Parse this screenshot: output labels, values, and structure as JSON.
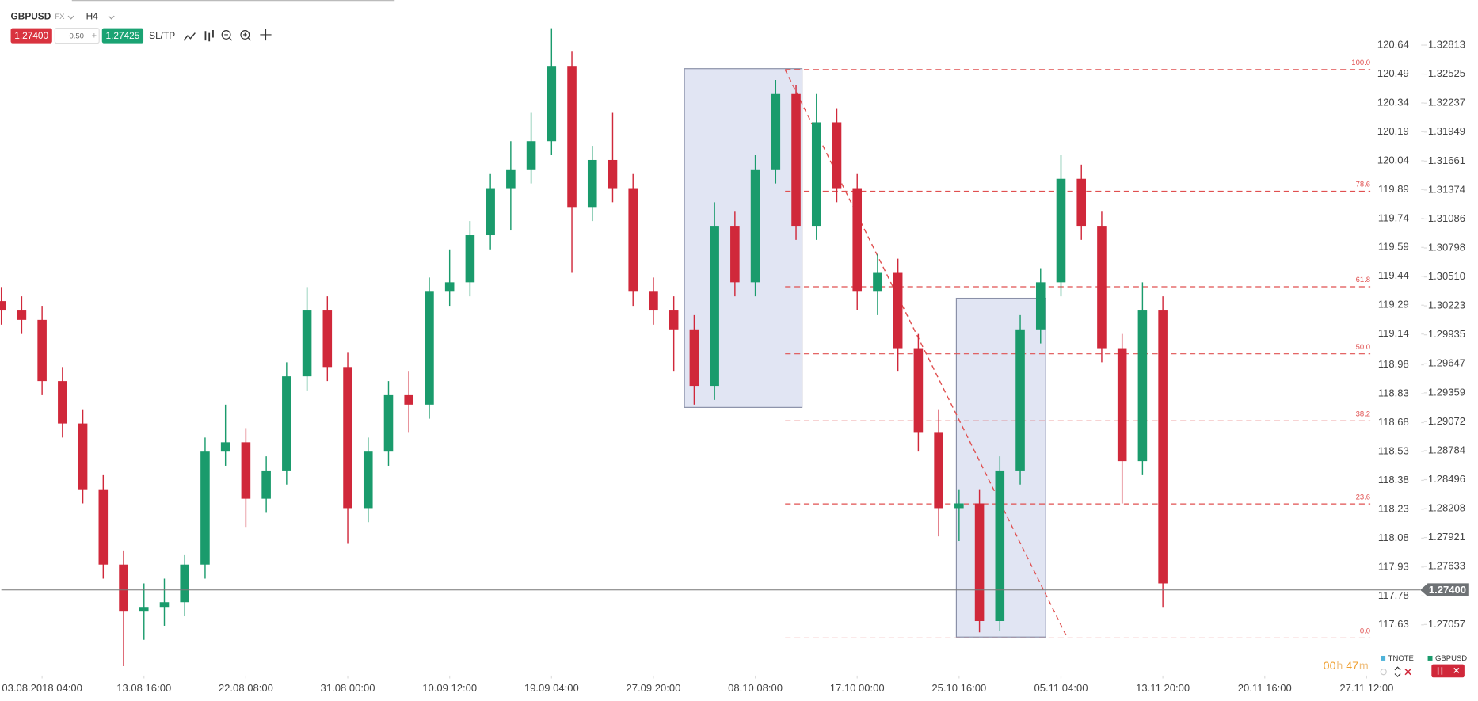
{
  "header": {
    "symbol": "GBPUSD",
    "market": "FX",
    "timeframe": "H4",
    "sell": "1.27400",
    "spread": "0.50",
    "buy": "1.27425",
    "sltp": "SL/TP"
  },
  "chart_data": {
    "type": "candlestick",
    "up_color": "#1a9b6c",
    "down_color": "#d0283a",
    "open": [
      1.3027,
      1.30176,
      1.30083,
      1.29475,
      1.29054,
      1.284,
      1.27652,
      1.27184,
      1.27231,
      1.27278,
      1.27652,
      1.28774,
      1.28867,
      1.28306,
      1.28587,
      1.29522,
      1.30176,
      1.29615,
      1.28213,
      1.28774,
      1.29335,
      1.29241,
      1.30363,
      1.30457,
      1.30924,
      1.31392,
      1.31579,
      1.31859,
      1.32607,
      1.31205,
      1.31672,
      1.31392,
      1.30363,
      1.30176,
      1.29989,
      1.29428,
      1.31018,
      1.30457,
      1.31579,
      1.32327,
      1.31018,
      1.32046,
      1.31392,
      1.30363,
      1.3055,
      1.29802,
      1.28961,
      1.28213,
      1.2826,
      1.27091,
      1.28587,
      1.29989,
      1.30457,
      1.31485,
      1.31018,
      1.29802,
      1.2868,
      1.30176
    ],
    "high": [
      1.3041,
      1.30317,
      1.30223,
      1.29615,
      1.29195,
      1.2854,
      1.27792,
      1.27465,
      1.27512,
      1.27745,
      1.28914,
      1.29241,
      1.29008,
      1.28727,
      1.29662,
      1.3041,
      1.30317,
      1.29756,
      1.28914,
      1.29475,
      1.29569,
      1.30504,
      1.30784,
      1.31065,
      1.31532,
      1.31859,
      1.3214,
      1.32981,
      1.32748,
      1.31813,
      1.3214,
      1.31532,
      1.30504,
      1.30317,
      1.3013,
      1.31252,
      1.31158,
      1.31719,
      1.32467,
      1.3242,
      1.32327,
      1.32187,
      1.31532,
      1.30737,
      1.30691,
      1.29943,
      1.29195,
      1.284,
      1.284,
      1.28727,
      1.3013,
      1.30597,
      1.31719,
      1.31626,
      1.31158,
      1.29943,
      1.30457,
      1.30317
    ],
    "low": [
      1.30036,
      1.29943,
      1.29335,
      1.28914,
      1.2826,
      1.27512,
      1.26642,
      1.26904,
      1.27044,
      1.27138,
      1.27512,
      1.28634,
      1.28026,
      1.28166,
      1.28447,
      1.29382,
      1.29475,
      1.27858,
      1.28073,
      1.28634,
      1.28961,
      1.29101,
      1.30223,
      1.30317,
      1.30784,
      1.30971,
      1.31439,
      1.31719,
      1.3055,
      1.31065,
      1.31252,
      1.30223,
      1.30036,
      1.29569,
      1.29241,
      1.29288,
      1.30317,
      1.30317,
      1.31439,
      1.30878,
      1.30878,
      1.31252,
      1.30176,
      1.3013,
      1.29569,
      1.28774,
      1.27932,
      1.27886,
      1.26979,
      1.26997,
      1.28447,
      1.29849,
      1.30317,
      1.30878,
      1.29662,
      1.2826,
      1.2854,
      1.27231
    ],
    "close": [
      1.30176,
      1.30083,
      1.29475,
      1.29054,
      1.284,
      1.27652,
      1.27184,
      1.27231,
      1.27278,
      1.27652,
      1.28774,
      1.28867,
      1.28306,
      1.28587,
      1.29522,
      1.30176,
      1.29615,
      1.28213,
      1.28774,
      1.29335,
      1.29241,
      1.30363,
      1.30457,
      1.30924,
      1.31392,
      1.31579,
      1.31859,
      1.32607,
      1.31205,
      1.31672,
      1.31392,
      1.30363,
      1.30176,
      1.29989,
      1.29428,
      1.31018,
      1.30457,
      1.31579,
      1.32327,
      1.31018,
      1.32046,
      1.31392,
      1.30363,
      1.3055,
      1.29802,
      1.28961,
      1.28213,
      1.2826,
      1.27091,
      1.28587,
      1.29989,
      1.30457,
      1.31485,
      1.31018,
      1.29802,
      1.2868,
      1.30176,
      1.27465
    ],
    "xlim": [
      0,
      72.4
    ],
    "xticks": [
      {
        "value": 2,
        "label": "03.08.2018 04:00"
      },
      {
        "value": 7,
        "label": "13.08 16:00"
      },
      {
        "value": 12,
        "label": "22.08 08:00"
      },
      {
        "value": 17,
        "label": "31.08 00:00"
      },
      {
        "value": 22,
        "label": "10.09 12:00"
      },
      {
        "value": 27,
        "label": "19.09 04:00"
      },
      {
        "value": 32,
        "label": "27.09 20:00"
      },
      {
        "value": 37,
        "label": "08.10 08:00"
      },
      {
        "value": 42,
        "label": "17.10 00:00"
      },
      {
        "value": 47,
        "label": "25.10 16:00"
      },
      {
        "value": 52,
        "label": "05.11 04:00"
      },
      {
        "value": 57,
        "label": "13.11 20:00"
      },
      {
        "value": 62,
        "label": "20.11 16:00"
      },
      {
        "value": 67,
        "label": "27.11 12:00"
      }
    ],
    "ylim": [
      1.265765,
      1.331215
    ],
    "yticks": [
      1.32813,
      1.32525,
      1.32237,
      1.31949,
      1.31661,
      1.31374,
      1.31086,
      1.30798,
      {
        "value": 1.3051,
        "label": "1.30510"
      },
      1.30223,
      1.29935,
      1.29647,
      1.29359,
      1.29072,
      1.28784,
      1.28496,
      1.28208,
      1.27921,
      1.27633,
      1.27057
    ],
    "y2lim": [
      117.3808,
      120.8013
    ],
    "y2ticks": [
      120.64,
      120.49,
      120.34,
      120.19,
      120.04,
      119.89,
      119.74,
      119.59,
      119.44,
      119.29,
      119.14,
      118.98,
      118.83,
      118.68,
      118.53,
      118.38,
      118.23,
      118.08,
      117.93,
      117.78,
      117.63
    ],
    "current_price": {
      "value": 1.274,
      "label": "1.27400"
    },
    "fib": {
      "high": 1.3257,
      "low": 1.26922,
      "color": "#e05050",
      "levels": [
        {
          "value": 100,
          "label": "100.0"
        },
        78.6,
        61.8,
        {
          "value": 50,
          "label": "50.0"
        },
        38.2,
        23.6,
        {
          "value": 0,
          "label": "0.0"
        }
      ]
    },
    "legend": [
      {
        "name": "TNOTE",
        "color": "#4fb3d9"
      },
      {
        "name": "GBPUSD",
        "color": "#1a9b6c"
      }
    ],
    "timer": {
      "hours": "00",
      "hours_unit": "h",
      "minutes": "47",
      "minutes_unit": "m"
    }
  }
}
